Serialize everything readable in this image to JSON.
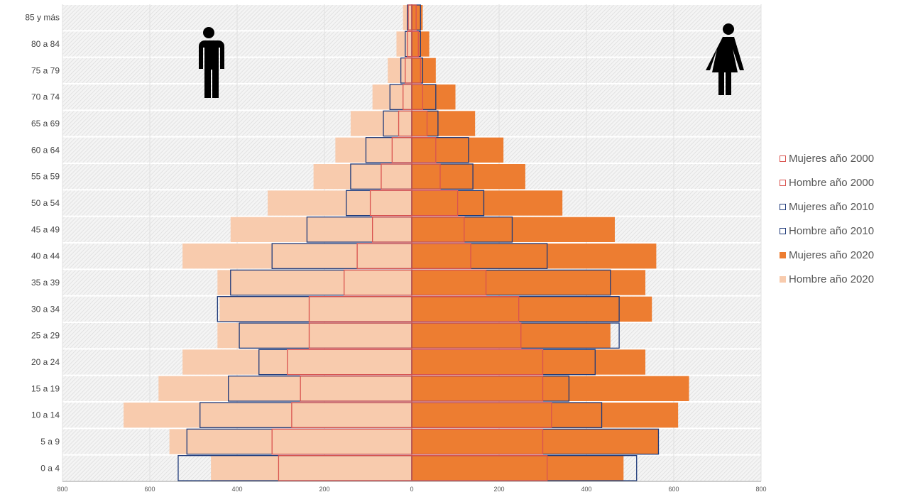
{
  "chart_data": {
    "type": "bar",
    "orientation": "horizontal",
    "categories": [
      "0 a 4",
      "5 a 9",
      "10 a 14",
      "15 a 19",
      "20 a 24",
      "25 a 29",
      "30 a 34",
      "35 a 39",
      "40 a 44",
      "45 a 49",
      "50 a 54",
      "55 a 59",
      "60 a 64",
      "65 a 69",
      "70 a 74",
      "75 a 79",
      "80 a 84",
      "85 y más"
    ],
    "xlim": [
      -800,
      800
    ],
    "x_ticks": [
      "800",
      "600",
      "400",
      "200",
      "0",
      "200",
      "400",
      "600",
      "800"
    ],
    "grid": true,
    "legend_position": "right",
    "series": [
      {
        "name": "Hombre año 2020",
        "side": "left",
        "style": "fill",
        "color": "#f8cbad",
        "values": [
          460,
          555,
          660,
          580,
          525,
          445,
          440,
          445,
          525,
          415,
          330,
          225,
          175,
          140,
          90,
          55,
          35,
          20
        ]
      },
      {
        "name": "Mujeres año 2020",
        "side": "right",
        "style": "fill",
        "color": "#ed7d31",
        "values": [
          485,
          565,
          610,
          635,
          535,
          455,
          550,
          535,
          560,
          465,
          345,
          260,
          210,
          145,
          100,
          55,
          40,
          25
        ]
      },
      {
        "name": "Hombre año 2010",
        "side": "left",
        "style": "outline",
        "color": "#1f3a7a",
        "values": [
          535,
          515,
          485,
          420,
          350,
          395,
          445,
          415,
          320,
          240,
          150,
          140,
          105,
          65,
          50,
          25,
          15,
          10
        ]
      },
      {
        "name": "Mujeres año 2010",
        "side": "right",
        "style": "outline",
        "color": "#1f3a7a",
        "values": [
          515,
          565,
          435,
          360,
          420,
          475,
          475,
          455,
          310,
          230,
          165,
          140,
          130,
          60,
          55,
          25,
          20,
          20
        ]
      },
      {
        "name": "Hombre año 2000",
        "side": "left",
        "style": "outline",
        "color": "#d9534f",
        "values": [
          305,
          320,
          275,
          255,
          285,
          235,
          235,
          155,
          125,
          90,
          95,
          70,
          45,
          30,
          20,
          15,
          10,
          8
        ]
      },
      {
        "name": "Mujeres año 2000",
        "side": "right",
        "style": "outline",
        "color": "#d9534f",
        "values": [
          310,
          300,
          320,
          300,
          300,
          250,
          245,
          170,
          135,
          120,
          105,
          65,
          55,
          35,
          25,
          20,
          15,
          10
        ]
      }
    ],
    "legend": [
      "Mujeres año 2000",
      "Hombre año 2000",
      "Mujeres año 2010",
      "Hombre año 2010",
      "Mujeres año 2020",
      "Hombre año 2020"
    ]
  },
  "icons": {
    "left": "male-person-icon",
    "right": "female-person-icon"
  },
  "legend_styles": [
    {
      "color": "#d9534f",
      "style": "outline"
    },
    {
      "color": "#d9534f",
      "style": "outline"
    },
    {
      "color": "#1f3a7a",
      "style": "outline"
    },
    {
      "color": "#1f3a7a",
      "style": "outline"
    },
    {
      "color": "#ed7d31",
      "style": "fill"
    },
    {
      "color": "#f8cbad",
      "style": "fill"
    }
  ]
}
